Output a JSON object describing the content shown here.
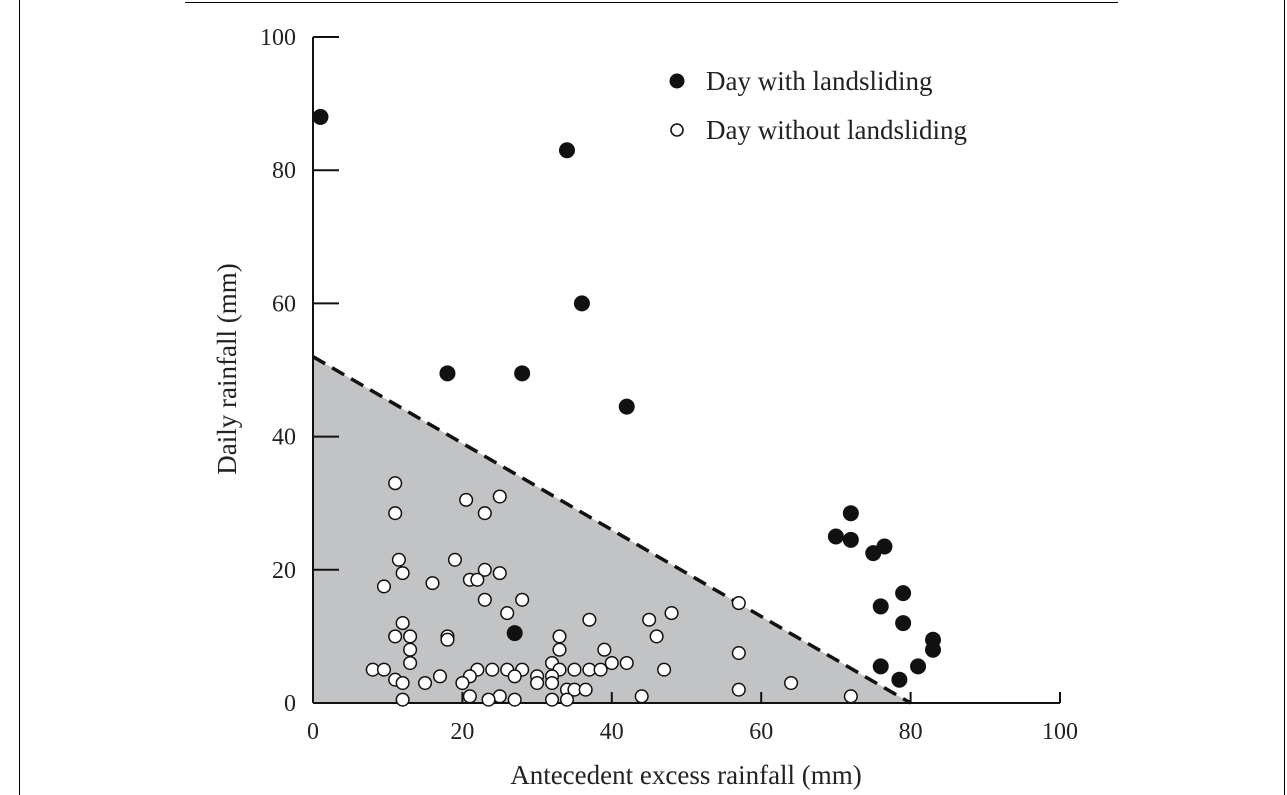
{
  "chart_data": {
    "type": "scatter",
    "title": "",
    "xlabel": "Antecedent excess rainfall (mm)",
    "ylabel": "Daily rainfall (mm)",
    "xlim": [
      0,
      100
    ],
    "ylim": [
      0,
      100
    ],
    "xticks": [
      "0",
      "20",
      "40",
      "60",
      "80",
      "100"
    ],
    "yticks": [
      "0",
      "20",
      "40",
      "60",
      "80",
      "100"
    ],
    "grid": false,
    "legend_position": "top-right",
    "threshold_line": {
      "x": [
        0,
        80
      ],
      "y": [
        52,
        0
      ],
      "style": "dashed",
      "region_below_shaded": true,
      "shade_color": "#c2c3c5"
    },
    "series": [
      {
        "name": "Day with landsliding",
        "marker": "filled-circle",
        "color": "#111111",
        "points": [
          [
            1,
            88
          ],
          [
            34,
            83
          ],
          [
            36,
            60
          ],
          [
            18,
            49.5
          ],
          [
            28,
            49.5
          ],
          [
            42,
            44.5
          ],
          [
            27,
            10.5
          ],
          [
            72,
            28.5
          ],
          [
            70,
            25
          ],
          [
            72,
            24.5
          ],
          [
            76.5,
            23.5
          ],
          [
            75,
            22.5
          ],
          [
            79,
            16.5
          ],
          [
            76,
            14.5
          ],
          [
            79,
            12
          ],
          [
            83,
            9.5
          ],
          [
            83,
            8
          ],
          [
            81,
            5.5
          ],
          [
            76,
            5.5
          ],
          [
            78.5,
            3.5
          ]
        ]
      },
      {
        "name": "Day without landsliding",
        "marker": "open-circle",
        "color": "#111111",
        "points": [
          [
            11,
            33
          ],
          [
            20.5,
            30.5
          ],
          [
            25,
            31
          ],
          [
            11,
            28.5
          ],
          [
            23,
            28.5
          ],
          [
            11.5,
            21.5
          ],
          [
            19,
            21.5
          ],
          [
            23,
            20
          ],
          [
            25,
            19.5
          ],
          [
            12,
            19.5
          ],
          [
            21,
            18.5
          ],
          [
            22,
            18.5
          ],
          [
            16,
            18
          ],
          [
            9.5,
            17.5
          ],
          [
            23,
            15.5
          ],
          [
            28,
            15.5
          ],
          [
            57,
            15
          ],
          [
            26,
            13.5
          ],
          [
            48,
            13.5
          ],
          [
            45,
            12.5
          ],
          [
            37,
            12.5
          ],
          [
            12,
            12
          ],
          [
            11,
            10
          ],
          [
            13,
            10
          ],
          [
            18,
            10
          ],
          [
            18,
            9.5
          ],
          [
            33,
            10
          ],
          [
            46,
            10
          ],
          [
            13,
            8
          ],
          [
            33,
            8
          ],
          [
            39,
            8
          ],
          [
            57,
            7.5
          ],
          [
            13,
            6
          ],
          [
            32,
            6
          ],
          [
            40,
            6
          ],
          [
            42,
            6
          ],
          [
            8,
            5
          ],
          [
            9.5,
            5
          ],
          [
            22,
            5
          ],
          [
            24,
            5
          ],
          [
            26,
            5
          ],
          [
            28,
            5
          ],
          [
            33,
            5
          ],
          [
            35,
            5
          ],
          [
            37,
            5
          ],
          [
            38.5,
            5
          ],
          [
            47,
            5
          ],
          [
            17,
            4
          ],
          [
            21,
            4
          ],
          [
            27,
            4
          ],
          [
            30,
            4
          ],
          [
            32,
            4
          ],
          [
            11,
            3.5
          ],
          [
            12,
            3
          ],
          [
            15,
            3
          ],
          [
            20,
            3
          ],
          [
            30,
            3
          ],
          [
            32,
            3
          ],
          [
            64,
            3
          ],
          [
            34,
            2
          ],
          [
            35,
            2
          ],
          [
            36.5,
            2
          ],
          [
            57,
            2
          ],
          [
            21,
            1
          ],
          [
            25,
            1
          ],
          [
            44,
            1
          ],
          [
            72,
            1
          ],
          [
            12,
            0.5
          ],
          [
            23.5,
            0.5
          ],
          [
            27,
            0.5
          ],
          [
            32,
            0.5
          ],
          [
            34,
            0.5
          ]
        ]
      }
    ]
  }
}
